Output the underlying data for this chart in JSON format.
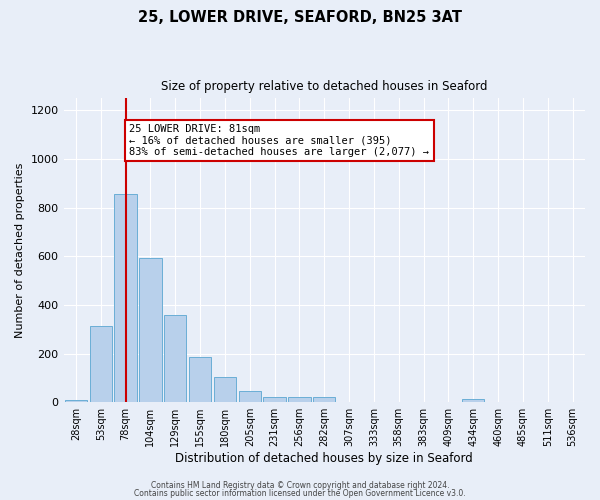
{
  "title": "25, LOWER DRIVE, SEAFORD, BN25 3AT",
  "subtitle": "Size of property relative to detached houses in Seaford",
  "xlabel": "Distribution of detached houses by size in Seaford",
  "ylabel": "Number of detached properties",
  "bar_labels": [
    "28sqm",
    "53sqm",
    "78sqm",
    "104sqm",
    "129sqm",
    "155sqm",
    "180sqm",
    "205sqm",
    "231sqm",
    "256sqm",
    "282sqm",
    "307sqm",
    "333sqm",
    "358sqm",
    "383sqm",
    "409sqm",
    "434sqm",
    "460sqm",
    "485sqm",
    "511sqm",
    "536sqm"
  ],
  "bar_values": [
    10,
    315,
    855,
    595,
    360,
    185,
    103,
    45,
    20,
    20,
    20,
    0,
    0,
    0,
    0,
    0,
    15,
    0,
    0,
    0,
    0
  ],
  "bar_color": "#b8d0eb",
  "bar_edge_color": "#6aaed6",
  "background_color": "#e8eef8",
  "grid_color": "#ffffff",
  "marker_label": "25 LOWER DRIVE: 81sqm",
  "annotation_line1": "← 16% of detached houses are smaller (395)",
  "annotation_line2": "83% of semi-detached houses are larger (2,077) →",
  "annotation_box_color": "#ffffff",
  "annotation_border_color": "#cc0000",
  "vline_color": "#cc0000",
  "ylim": [
    0,
    1250
  ],
  "yticks": [
    0,
    200,
    400,
    600,
    800,
    1000,
    1200
  ],
  "footnote1": "Contains HM Land Registry data © Crown copyright and database right 2024.",
  "footnote2": "Contains public sector information licensed under the Open Government Licence v3.0."
}
